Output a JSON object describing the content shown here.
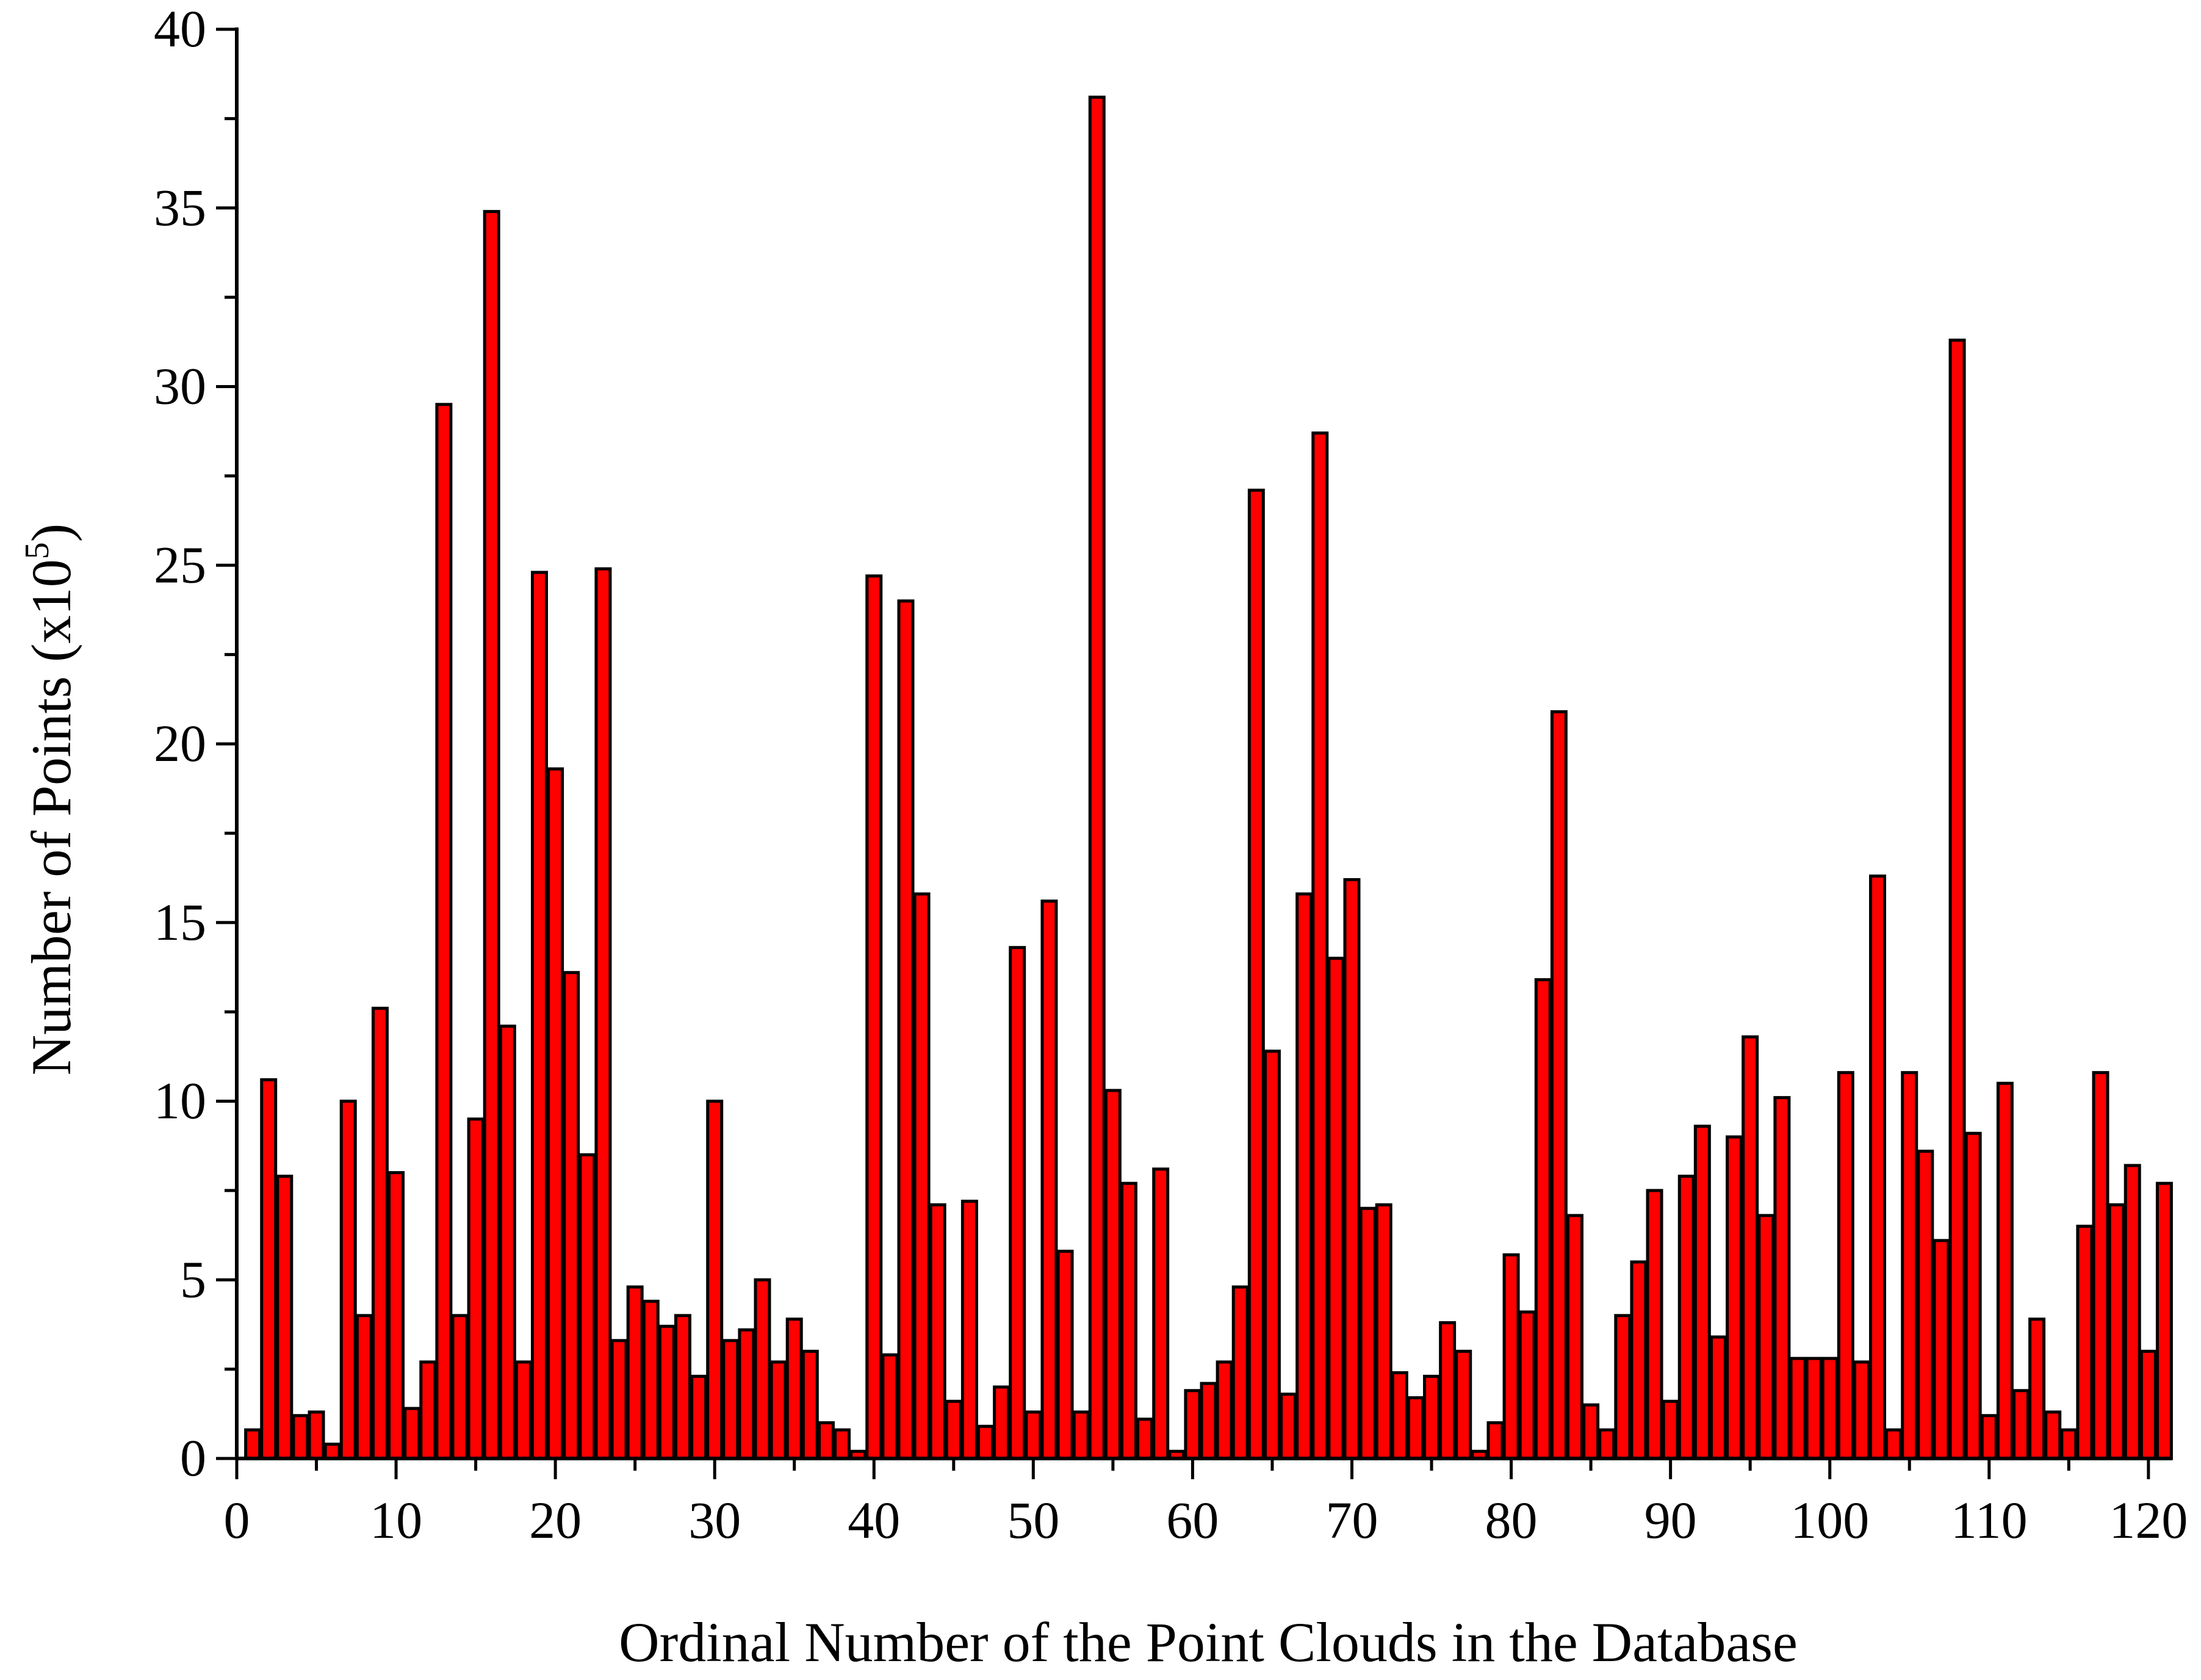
{
  "chart_data": {
    "type": "bar",
    "xlabel": "Ordinal Number of the Point Clouds in the Database",
    "ylabel": "Number of Points (x10",
    "ylabel_superscript": "5",
    "ylabel_close": ")",
    "xlim": [
      0,
      121.5
    ],
    "ylim": [
      0,
      40
    ],
    "x_ticks": [
      "0",
      "10",
      "20",
      "30",
      "40",
      "50",
      "60",
      "70",
      "80",
      "90",
      "100",
      "110",
      "120"
    ],
    "y_ticks": [
      "0",
      "5",
      "10",
      "15",
      "20",
      "25",
      "30",
      "35",
      "40"
    ],
    "grid": false,
    "legend": "none",
    "colors": {
      "bar_fill": "#ff0000",
      "bar_stroke": "#000000",
      "axis": "#000000"
    },
    "categories": [
      1,
      2,
      3,
      4,
      5,
      6,
      7,
      8,
      9,
      10,
      11,
      12,
      13,
      14,
      15,
      16,
      17,
      18,
      19,
      20,
      21,
      22,
      23,
      24,
      25,
      26,
      27,
      28,
      29,
      30,
      31,
      32,
      33,
      34,
      35,
      36,
      37,
      38,
      39,
      40,
      41,
      42,
      43,
      44,
      45,
      46,
      47,
      48,
      49,
      50,
      51,
      52,
      53,
      54,
      55,
      56,
      57,
      58,
      59,
      60,
      61,
      62,
      63,
      64,
      65,
      66,
      67,
      68,
      69,
      70,
      71,
      72,
      73,
      74,
      75,
      76,
      77,
      78,
      79,
      80,
      81,
      82,
      83,
      84,
      85,
      86,
      87,
      88,
      89,
      90,
      91,
      92,
      93,
      94,
      95,
      96,
      97,
      98,
      99,
      100,
      101,
      102,
      103,
      104,
      105,
      106,
      107,
      108,
      109,
      110,
      111,
      112,
      113,
      114,
      115,
      116,
      117,
      118,
      119,
      120,
      121
    ],
    "values": [
      0.8,
      10.6,
      7.9,
      1.2,
      1.3,
      0.4,
      10.0,
      4.0,
      12.6,
      8.0,
      1.4,
      2.7,
      29.5,
      4.0,
      9.5,
      34.9,
      12.1,
      2.7,
      24.8,
      19.3,
      13.6,
      8.5,
      24.9,
      3.3,
      4.8,
      4.4,
      3.7,
      4.0,
      2.3,
      10.0,
      3.3,
      3.6,
      5.0,
      2.7,
      3.9,
      3.0,
      1.0,
      0.8,
      0.2,
      24.7,
      2.9,
      24.0,
      15.8,
      7.1,
      1.6,
      7.2,
      0.9,
      2.0,
      14.3,
      1.3,
      15.6,
      5.8,
      1.3,
      38.1,
      10.3,
      7.7,
      1.1,
      8.1,
      0.2,
      1.9,
      2.1,
      2.7,
      4.8,
      27.1,
      11.4,
      1.8,
      15.8,
      28.7,
      14.0,
      16.2,
      7.0,
      7.1,
      2.4,
      1.7,
      2.3,
      3.8,
      3.0,
      0.2,
      1.0,
      5.7,
      4.1,
      13.4,
      20.9,
      6.8,
      1.5,
      0.8,
      4.0,
      5.5,
      7.5,
      1.6,
      7.9,
      9.3,
      3.4,
      9.0,
      11.8,
      6.8,
      10.1,
      2.8,
      2.8,
      2.8,
      10.8,
      2.7,
      16.3,
      0.8,
      10.8,
      8.6,
      6.1,
      31.3,
      9.1,
      1.2,
      10.5,
      1.9,
      3.9,
      1.3,
      0.8,
      6.5,
      10.8,
      7.1,
      8.2,
      3.0,
      7.7
    ]
  }
}
